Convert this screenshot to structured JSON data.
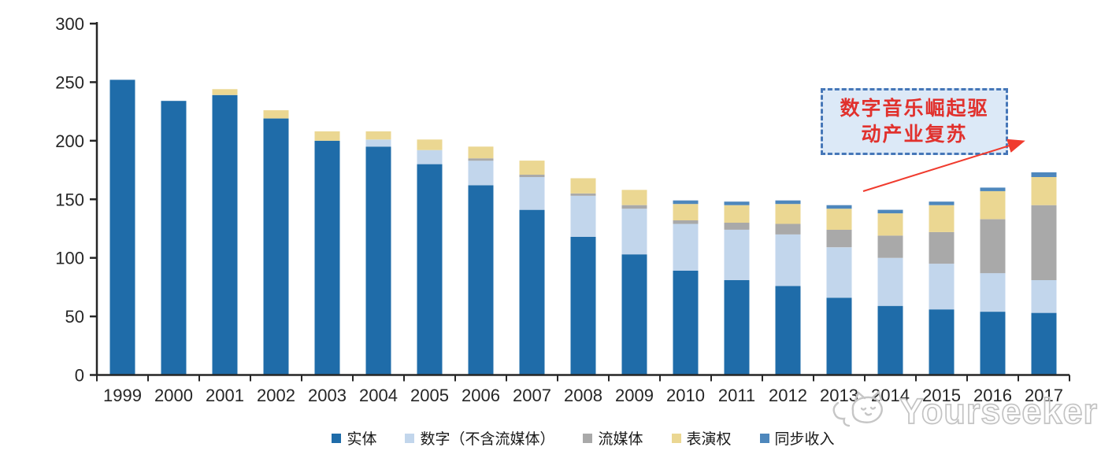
{
  "chart_data": {
    "type": "bar",
    "stacked": true,
    "title": "",
    "xlabel": "",
    "ylabel": "",
    "categories": [
      "1999",
      "2000",
      "2001",
      "2002",
      "2003",
      "2004",
      "2005",
      "2006",
      "2007",
      "2008",
      "2009",
      "2010",
      "2011",
      "2012",
      "2013",
      "2014",
      "2015",
      "2016",
      "2017"
    ],
    "series": [
      {
        "name": "实体",
        "color": "#1F6CA9",
        "values": [
          252,
          234,
          239,
          219,
          200,
          195,
          180,
          162,
          141,
          118,
          103,
          89,
          81,
          76,
          66,
          59,
          56,
          54,
          53
        ]
      },
      {
        "name": "数字（不含流媒体）",
        "color": "#C2D6EC",
        "values": [
          0,
          0,
          0,
          0,
          0,
          6,
          12,
          21,
          28,
          35,
          39,
          40,
          43,
          44,
          43,
          41,
          39,
          33,
          28
        ]
      },
      {
        "name": "流媒体",
        "color": "#A9A9A9",
        "values": [
          0,
          0,
          0,
          0,
          0,
          0,
          0,
          2,
          2,
          2,
          3,
          3,
          6,
          9,
          15,
          19,
          27,
          46,
          64
        ]
      },
      {
        "name": "表演权",
        "color": "#EBD792",
        "values": [
          0,
          0,
          5,
          7,
          8,
          7,
          9,
          10,
          12,
          13,
          13,
          14,
          15,
          17,
          18,
          19,
          23,
          24,
          24
        ]
      },
      {
        "name": "同步收入",
        "color": "#4E87BC",
        "values": [
          0,
          0,
          0,
          0,
          0,
          0,
          0,
          0,
          0,
          0,
          0,
          3,
          3,
          3,
          3,
          3,
          3,
          3,
          4
        ]
      }
    ],
    "ylim": [
      0,
      300
    ],
    "yticks": [
      0,
      50,
      100,
      150,
      200,
      250,
      300
    ],
    "grid": false,
    "legend_position": "bottom"
  },
  "annotation": {
    "line1": "数字音乐崛起驱",
    "line2": "动产业复苏",
    "text_color": "#E1312D",
    "box_fill": "#DCE9F7",
    "box_border": "#4677B8",
    "arrow_color": "#F03B2E"
  },
  "watermark": {
    "text": "Yourseeker",
    "color": "#C3C3C3"
  },
  "axis": {
    "color": "#262626"
  }
}
